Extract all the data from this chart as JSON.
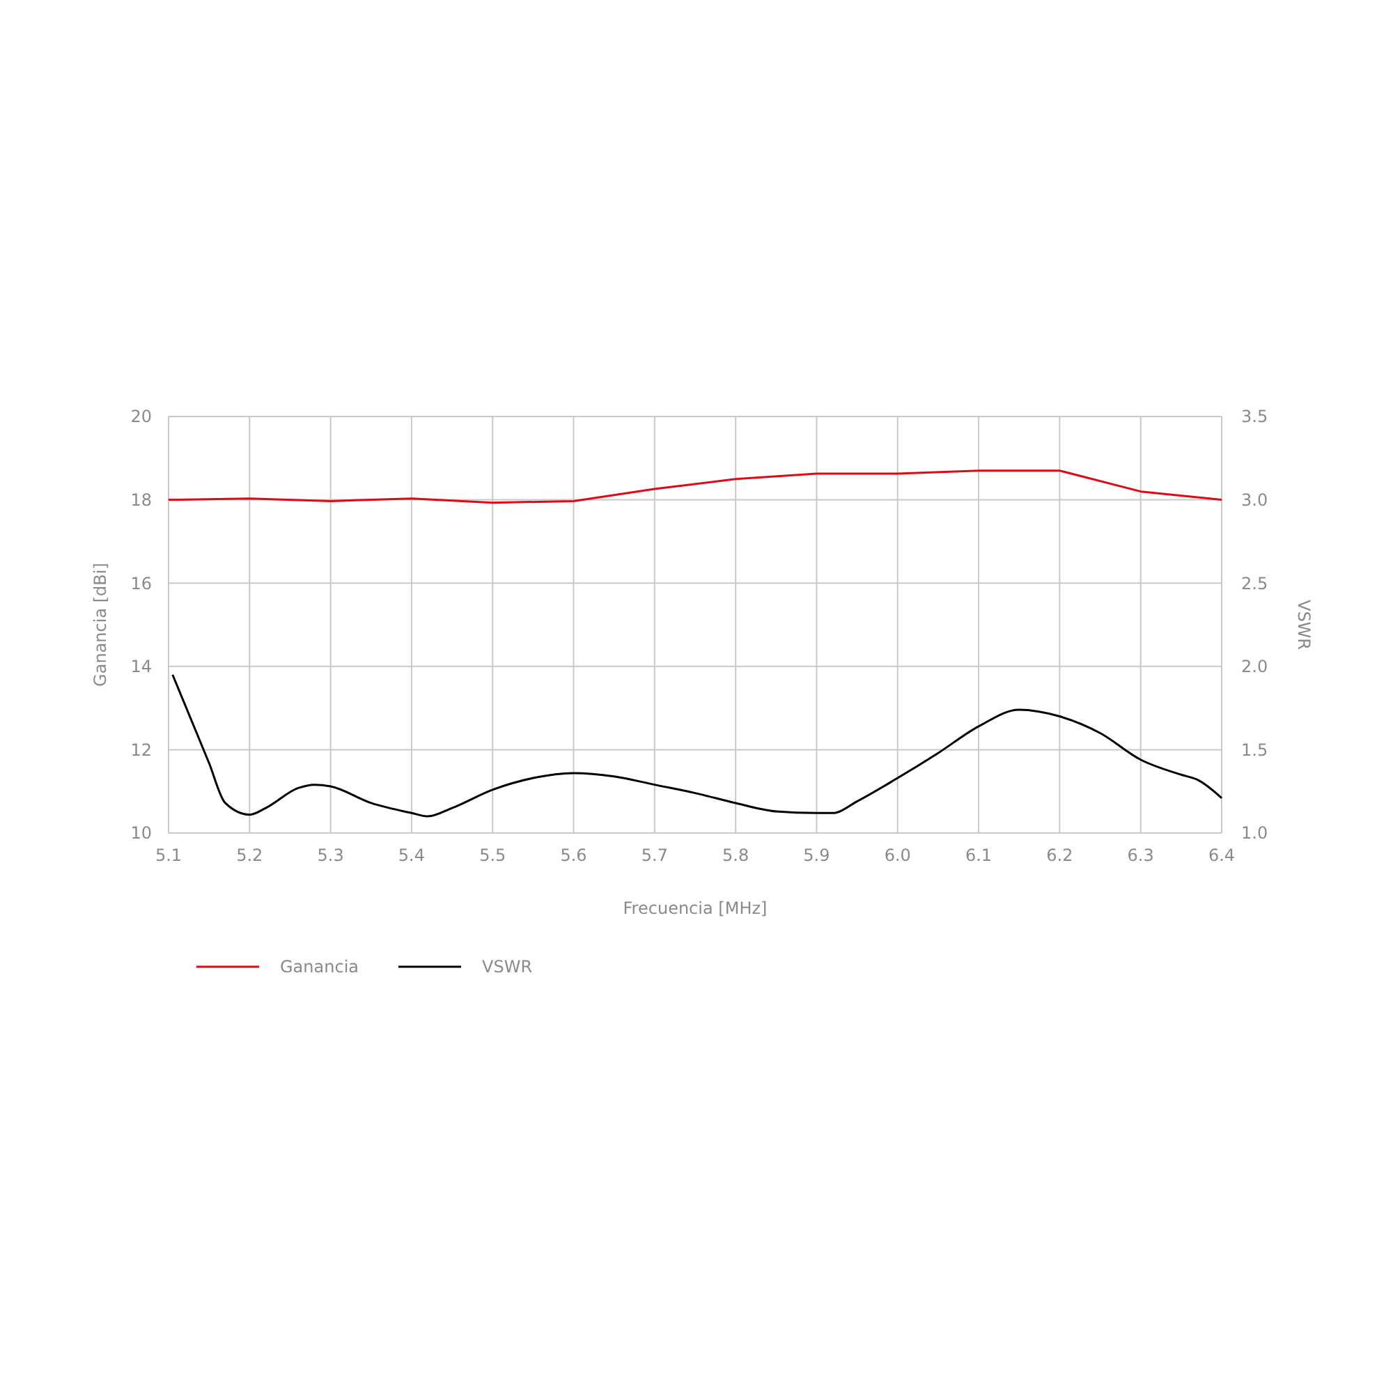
{
  "chart_data": {
    "type": "line",
    "xlabel": "Frecuencia [MHz]",
    "ylabel": "Ganancia [dBi]",
    "y2label": "VSWR",
    "xlim": [
      5.1,
      6.4
    ],
    "xticks": [
      5.1,
      5.2,
      5.3,
      5.4,
      5.5,
      5.6,
      5.7,
      5.8,
      5.9,
      {
        "value": 6.0,
        "label": "6.0"
      },
      6.1,
      6.2,
      6.3,
      6.4
    ],
    "ylim": [
      10,
      20
    ],
    "yticks": [
      10,
      12,
      14,
      16,
      18,
      20
    ],
    "y2lim": [
      1.0,
      3.5
    ],
    "y2ticks": [
      {
        "value": 1.0,
        "label": "1.0"
      },
      1.5,
      {
        "value": 2.0,
        "label": "2.0"
      },
      2.5,
      {
        "value": 3.0,
        "label": "3.0"
      },
      3.5
    ],
    "grid": true,
    "legend": "bottom left",
    "line_style": "solid",
    "marker": "none",
    "series": [
      {
        "name": "Ganancia",
        "color": "#e30613",
        "x": [
          5.1,
          5.2,
          5.3,
          5.4,
          5.5,
          5.6,
          5.7,
          5.8,
          5.9,
          6.0,
          6.1,
          6.2,
          6.3,
          6.4
        ],
        "values": [
          18.0,
          18.03,
          17.97,
          18.03,
          17.93,
          17.97,
          18.26,
          18.5,
          18.63,
          18.63,
          18.7,
          18.7,
          18.2,
          18.0
        ]
      },
      {
        "name": "VSWR",
        "color": "#000000",
        "axis": "y2",
        "x": [
          5.105,
          5.15,
          5.17,
          5.2,
          5.22,
          5.26,
          5.28,
          5.3,
          5.35,
          5.4,
          5.42,
          5.45,
          5.5,
          5.55,
          5.6,
          5.65,
          5.7,
          5.75,
          5.8,
          5.85,
          5.9,
          5.92,
          5.95,
          6.0,
          6.05,
          6.1,
          6.15,
          6.2,
          6.25,
          6.3,
          6.35,
          6.37,
          6.4
        ],
        "values": [
          1.95,
          1.42,
          1.18,
          1.11,
          1.15,
          1.27,
          1.29,
          1.28,
          1.18,
          1.12,
          1.1,
          1.15,
          1.26,
          1.33,
          1.36,
          1.34,
          1.29,
          1.24,
          1.18,
          1.13,
          1.12,
          1.12,
          1.19,
          1.33,
          1.48,
          1.64,
          1.74,
          1.7,
          1.6,
          1.44,
          1.35,
          1.32,
          1.21
        ]
      }
    ]
  }
}
